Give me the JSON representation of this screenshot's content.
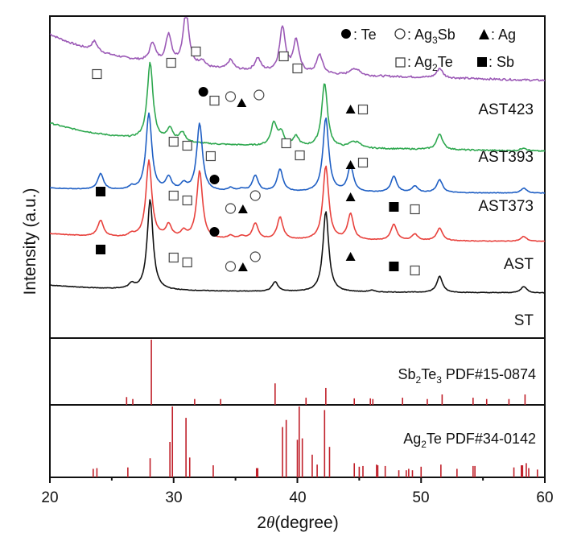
{
  "chart_data": {
    "type": "line",
    "title": "",
    "xlabel_prefix": "2",
    "xlabel_theta": "θ",
    "xlabel_suffix": "(degree)",
    "ylabel": "Intensity (a.u.)",
    "xlim": [
      20,
      60
    ],
    "x_ticks": [
      "20",
      "30",
      "40",
      "50",
      "60"
    ],
    "x_tick_values": [
      20,
      30,
      40,
      50,
      60
    ],
    "grid": false,
    "legend": {
      "placement": "top-right",
      "line1": {
        "te_label": ": Te",
        "ag3sb_prefix": ": Ag",
        "ag3sb_sub": "3",
        "ag3sb_suffix": "Sb",
        "ag_label": ": Ag"
      },
      "line2": {
        "ag2te_prefix": ": Ag",
        "ag2te_sub": "2",
        "ag2te_suffix": "Te",
        "sb_label": ": Sb"
      }
    },
    "series": [
      {
        "name": "AST423",
        "color": "#9b59b6",
        "offset": 0.8,
        "peaks": [
          [
            23.6,
            0.03
          ],
          [
            28.3,
            0.06
          ],
          [
            29.6,
            0.09
          ],
          [
            31.0,
            0.17
          ],
          [
            32.3,
            0.02
          ],
          [
            34.6,
            0.03
          ],
          [
            36.8,
            0.04
          ],
          [
            38.8,
            0.14
          ],
          [
            39.9,
            0.1
          ],
          [
            41.8,
            0.06
          ],
          [
            44.4,
            0.015
          ],
          [
            44.9,
            0.015
          ],
          [
            51.5,
            0.03
          ]
        ],
        "baseline": [
          0.18,
          0.0
        ]
      },
      {
        "name": "AST393",
        "color": "#2ea84f",
        "offset": 0.58,
        "peaks": [
          [
            28.1,
            0.24
          ],
          [
            29.7,
            0.04
          ],
          [
            30.7,
            0.03
          ],
          [
            38.1,
            0.07
          ],
          [
            38.7,
            0.04
          ],
          [
            39.9,
            0.03
          ],
          [
            42.2,
            0.2
          ],
          [
            44.4,
            0.015
          ],
          [
            44.9,
            0.015
          ],
          [
            51.5,
            0.05
          ],
          [
            58.3,
            0.01
          ]
        ],
        "baseline": [
          0.11,
          0.0
        ]
      },
      {
        "name": "AST373",
        "color": "#1f5fc4",
        "offset": 0.45,
        "peaks": [
          [
            24.1,
            0.05
          ],
          [
            26.6,
            0.01
          ],
          [
            28.0,
            0.24
          ],
          [
            29.6,
            0.04
          ],
          [
            30.8,
            0.02
          ],
          [
            32.1,
            0.21
          ],
          [
            34.6,
            0.01
          ],
          [
            35.5,
            0.008
          ],
          [
            36.6,
            0.05
          ],
          [
            38.6,
            0.07
          ],
          [
            42.3,
            0.23
          ],
          [
            44.3,
            0.08
          ],
          [
            47.8,
            0.05
          ],
          [
            49.5,
            0.02
          ],
          [
            51.5,
            0.04
          ],
          [
            58.3,
            0.015
          ]
        ],
        "baseline": [
          0.02,
          0.0
        ]
      },
      {
        "name": "AST",
        "color": "#e8413c",
        "offset": 0.3,
        "peaks": [
          [
            24.1,
            0.05
          ],
          [
            26.6,
            0.01
          ],
          [
            28.0,
            0.24
          ],
          [
            29.6,
            0.04
          ],
          [
            30.8,
            0.02
          ],
          [
            32.1,
            0.21
          ],
          [
            34.6,
            0.01
          ],
          [
            35.5,
            0.008
          ],
          [
            36.6,
            0.05
          ],
          [
            38.6,
            0.07
          ],
          [
            42.3,
            0.23
          ],
          [
            44.3,
            0.08
          ],
          [
            47.8,
            0.05
          ],
          [
            49.5,
            0.02
          ],
          [
            51.5,
            0.04
          ],
          [
            58.3,
            0.015
          ]
        ],
        "baseline": [
          0.03,
          0.0
        ]
      },
      {
        "name": "ST",
        "color": "#111111",
        "offset": 0.14,
        "peaks": [
          [
            26.6,
            0.015
          ],
          [
            28.1,
            0.28
          ],
          [
            38.2,
            0.03
          ],
          [
            42.3,
            0.25
          ],
          [
            46.0,
            0.005
          ],
          [
            51.5,
            0.05
          ],
          [
            58.3,
            0.02
          ]
        ],
        "baseline": [
          0.03,
          0.0
        ]
      }
    ],
    "sample_labels": [
      "AST423",
      "AST393",
      "AST373",
      "AST",
      "ST"
    ],
    "markers": [
      {
        "series": "AST423",
        "items": [
          [
            "open-square",
            23.8
          ],
          [
            "open-square",
            29.8
          ],
          [
            "open-square",
            31.8
          ],
          [
            "filled-circle",
            32.4
          ],
          [
            "open-square",
            33.3
          ],
          [
            "open-circle",
            34.6
          ],
          [
            "filled-triangle",
            35.5
          ],
          [
            "open-circle",
            36.9
          ],
          [
            "open-square",
            38.9
          ],
          [
            "open-square",
            40.0
          ],
          [
            "filled-triangle",
            44.3
          ],
          [
            "open-square",
            45.3
          ]
        ]
      },
      {
        "series": "AST393",
        "items": [
          [
            "open-square",
            30.0
          ],
          [
            "open-square",
            31.1
          ],
          [
            "open-square",
            33.0
          ],
          [
            "open-square",
            39.1
          ],
          [
            "open-square",
            40.2
          ],
          [
            "filled-triangle",
            44.3
          ],
          [
            "open-square",
            45.3
          ]
        ]
      },
      {
        "series": "AST373",
        "items": [
          [
            "filled-square",
            24.1
          ],
          [
            "open-square",
            30.0
          ],
          [
            "open-square",
            31.1
          ],
          [
            "filled-circle",
            33.3
          ],
          [
            "open-circle",
            34.6
          ],
          [
            "filled-triangle",
            35.6
          ],
          [
            "open-circle",
            36.6
          ],
          [
            "filled-triangle",
            44.3
          ],
          [
            "filled-square",
            47.8
          ],
          [
            "open-square",
            49.5
          ]
        ]
      },
      {
        "series": "AST",
        "items": [
          [
            "filled-square",
            24.1
          ],
          [
            "open-square",
            30.0
          ],
          [
            "open-square",
            31.1
          ],
          [
            "filled-circle",
            33.3
          ],
          [
            "open-circle",
            34.6
          ],
          [
            "filled-triangle",
            35.6
          ],
          [
            "open-circle",
            36.6
          ],
          [
            "filled-triangle",
            44.3
          ],
          [
            "filled-square",
            47.8
          ],
          [
            "open-square",
            49.5
          ]
        ]
      }
    ],
    "references": [
      {
        "name_prefix": "Sb",
        "sub1": "2",
        "mid": "Te",
        "sub2": "3",
        "suffix": " PDF#15-0874",
        "color": "#c0202a",
        "lines": [
          [
            26.2,
            0.12
          ],
          [
            26.7,
            0.09
          ],
          [
            28.2,
            1.0
          ],
          [
            31.7,
            0.09
          ],
          [
            33.8,
            0.09
          ],
          [
            38.2,
            0.33
          ],
          [
            40.7,
            0.11
          ],
          [
            42.3,
            0.26
          ],
          [
            44.6,
            0.1
          ],
          [
            45.9,
            0.1
          ],
          [
            46.1,
            0.09
          ],
          [
            48.5,
            0.11
          ],
          [
            50.5,
            0.09
          ],
          [
            51.7,
            0.16
          ],
          [
            54.2,
            0.11
          ],
          [
            55.3,
            0.09
          ],
          [
            57.1,
            0.09
          ],
          [
            58.4,
            0.16
          ]
        ]
      },
      {
        "name_prefix": "Ag",
        "sub1": "2",
        "mid": "Te",
        "sub2": "",
        "suffix": " PDF#34-0142",
        "color": "#c0202a",
        "lines": [
          [
            23.5,
            0.12
          ],
          [
            23.8,
            0.13
          ],
          [
            26.3,
            0.14
          ],
          [
            28.1,
            0.27
          ],
          [
            29.7,
            0.5
          ],
          [
            29.9,
            1.0
          ],
          [
            31.0,
            0.84
          ],
          [
            31.3,
            0.28
          ],
          [
            33.2,
            0.17
          ],
          [
            36.7,
            0.13
          ],
          [
            36.8,
            0.13
          ],
          [
            38.8,
            0.71
          ],
          [
            39.1,
            0.81
          ],
          [
            40.0,
            0.53
          ],
          [
            40.15,
            1.0
          ],
          [
            40.4,
            0.55
          ],
          [
            41.2,
            0.32
          ],
          [
            41.6,
            0.18
          ],
          [
            42.2,
            0.95
          ],
          [
            42.6,
            0.43
          ],
          [
            44.6,
            0.2
          ],
          [
            45.0,
            0.15
          ],
          [
            45.3,
            0.16
          ],
          [
            46.4,
            0.18
          ],
          [
            46.5,
            0.17
          ],
          [
            47.1,
            0.16
          ],
          [
            48.2,
            0.1
          ],
          [
            48.8,
            0.1
          ],
          [
            49.0,
            0.12
          ],
          [
            49.3,
            0.1
          ],
          [
            50.0,
            0.15
          ],
          [
            51.6,
            0.18
          ],
          [
            52.9,
            0.12
          ],
          [
            54.2,
            0.16
          ],
          [
            54.35,
            0.16
          ],
          [
            57.5,
            0.14
          ],
          [
            58.1,
            0.17
          ],
          [
            58.2,
            0.17
          ],
          [
            58.5,
            0.2
          ],
          [
            58.7,
            0.13
          ],
          [
            59.4,
            0.11
          ]
        ]
      }
    ]
  }
}
